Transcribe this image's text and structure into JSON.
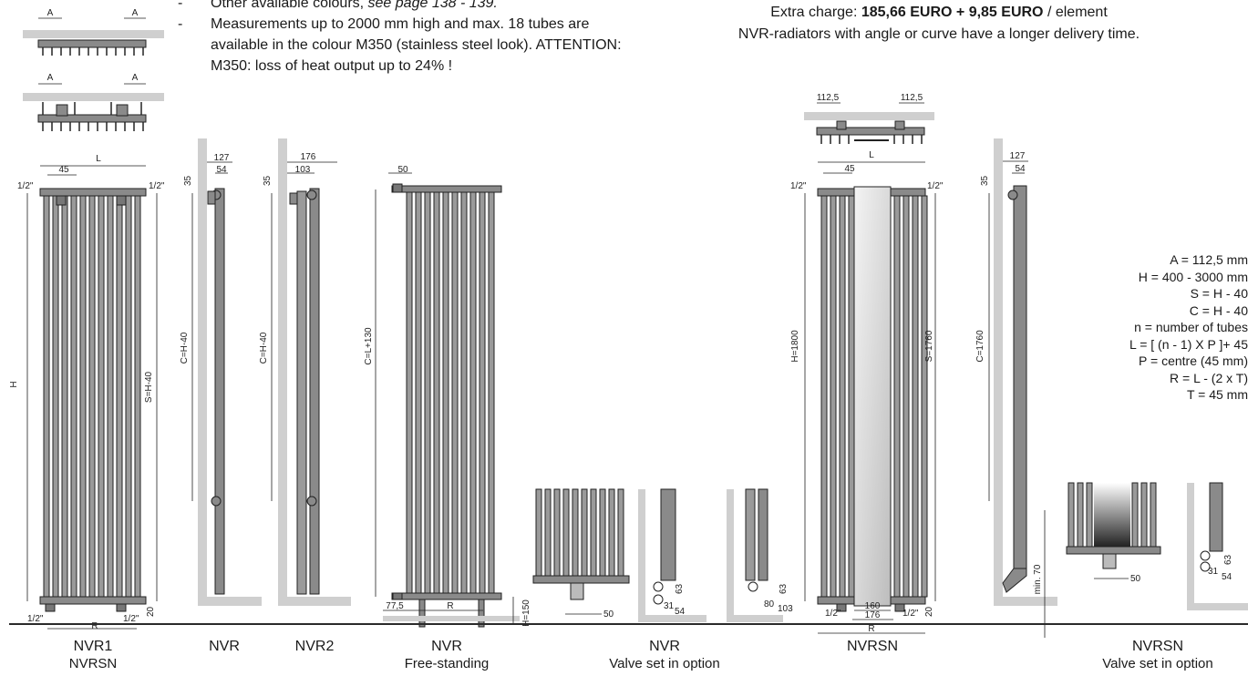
{
  "notes": {
    "dash": "-",
    "line1_text": "Other available colours, ",
    "line1_italic": "see page 138 - 139.",
    "line2": "Measurements up to 2000 mm high and max. 18 tubes are available in the colour M350 (stainless steel look).  ATTENTION: M350: loss of heat output up to 24% !"
  },
  "charge": {
    "prefix": "Extra charge: ",
    "amount": "185,66 EURO + 9,85 EURO",
    "suffix": " / element",
    "line2": "NVR-radiators with angle or curve have a longer delivery time."
  },
  "formulas": [
    "A = 112,5 mm",
    "H = 400 - 3000 mm",
    "S = H - 40",
    "C = H - 40",
    "n = number of tubes",
    "L = [ (n - 1) X P ]+ 45",
    "P = centre (45 mm)",
    "R = L - (2 x T)",
    "T = 45 mm"
  ],
  "dims": {
    "A": "A",
    "L": "L",
    "R": "R",
    "H": "H",
    "d45": "45",
    "half_inch": "1/2\"",
    "s_h40": "S=H-40",
    "c_h40": "C=H-40",
    "d127": "127",
    "d54": "54",
    "d35": "35",
    "d176": "176",
    "d103": "103",
    "d50": "50",
    "c_l130": "C=L+130",
    "d77_5": "77,5",
    "h150": "H=150",
    "d20": "20",
    "d63": "63",
    "d31": "31",
    "d80": "80",
    "d112_5": "112,5",
    "h1800": "H=1800",
    "s1760": "S=1760",
    "c1760": "C=1760",
    "d160": "160",
    "min70": "min. 70"
  },
  "labels": [
    {
      "title": "NVR1",
      "sub": "NVRSN"
    },
    {
      "title": "NVR",
      "sub": ""
    },
    {
      "title": "NVR2",
      "sub": ""
    },
    {
      "title": "NVR",
      "sub": "Free-standing"
    },
    {
      "title": "NVR",
      "sub": "Valve set in option"
    },
    {
      "title": "NVRSN",
      "sub": ""
    },
    {
      "title": "NVRSN",
      "sub": "Valve set in option"
    }
  ]
}
